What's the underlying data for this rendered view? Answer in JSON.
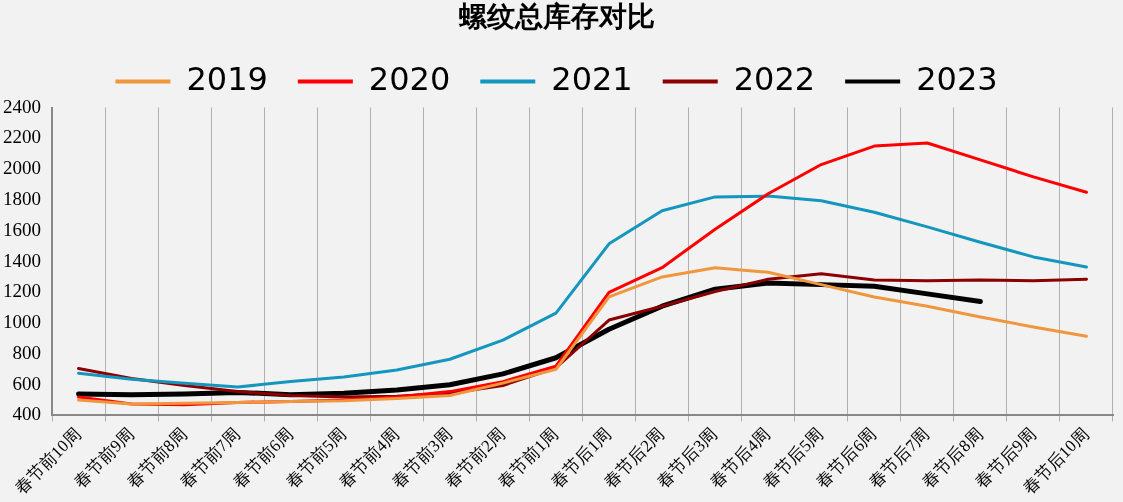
{
  "chart_data": {
    "type": "line",
    "title": "螺纹总库存对比",
    "categories": [
      "春节前10周",
      "春节前9周",
      "春节前8周",
      "春节前7周",
      "春节前6周",
      "春节前5周",
      "春节前4周",
      "春节前3周",
      "春节前2周",
      "春节前1周",
      "春节后1周",
      "春节后2周",
      "春节后3周",
      "春节后4周",
      "春节后5周",
      "春节后6周",
      "春节后7周",
      "春节后8周",
      "春节后9周",
      "春节后10周"
    ],
    "series": [
      {
        "name": "2019",
        "color": "#f0963c",
        "values": [
          500,
          475,
          480,
          485,
          490,
          495,
          510,
          530,
          610,
          700,
          1170,
          1300,
          1360,
          1330,
          1250,
          1170,
          1110,
          1040,
          975,
          915
        ]
      },
      {
        "name": "2020",
        "color": "#ff0000",
        "values": [
          520,
          475,
          470,
          485,
          490,
          500,
          520,
          555,
          620,
          720,
          1200,
          1360,
          1610,
          1840,
          2030,
          2150,
          2170,
          2060,
          1950,
          1850
        ]
      },
      {
        "name": "2021",
        "color": "#1496be",
        "values": [
          675,
          635,
          610,
          585,
          620,
          650,
          695,
          765,
          890,
          1065,
          1515,
          1730,
          1820,
          1825,
          1795,
          1720,
          1625,
          1525,
          1430,
          1365
        ]
      },
      {
        "name": "2022",
        "color": "#8b0000",
        "values": [
          705,
          640,
          595,
          555,
          530,
          520,
          525,
          545,
          595,
          710,
          1020,
          1110,
          1205,
          1285,
          1320,
          1280,
          1275,
          1280,
          1275,
          1285
        ]
      },
      {
        "name": "2023",
        "color": "#000000",
        "values": [
          540,
          535,
          540,
          550,
          535,
          545,
          565,
          600,
          670,
          775,
          960,
          1110,
          1220,
          1260,
          1250,
          1240,
          1190,
          1140,
          null,
          null
        ]
      }
    ],
    "ylim": [
      400,
      2400
    ],
    "yticks": [
      400,
      600,
      800,
      1000,
      1200,
      1400,
      1600,
      1800,
      2000,
      2200,
      2400
    ],
    "grid": "x",
    "legend": "top",
    "marker": "none",
    "line_style": "solid"
  }
}
